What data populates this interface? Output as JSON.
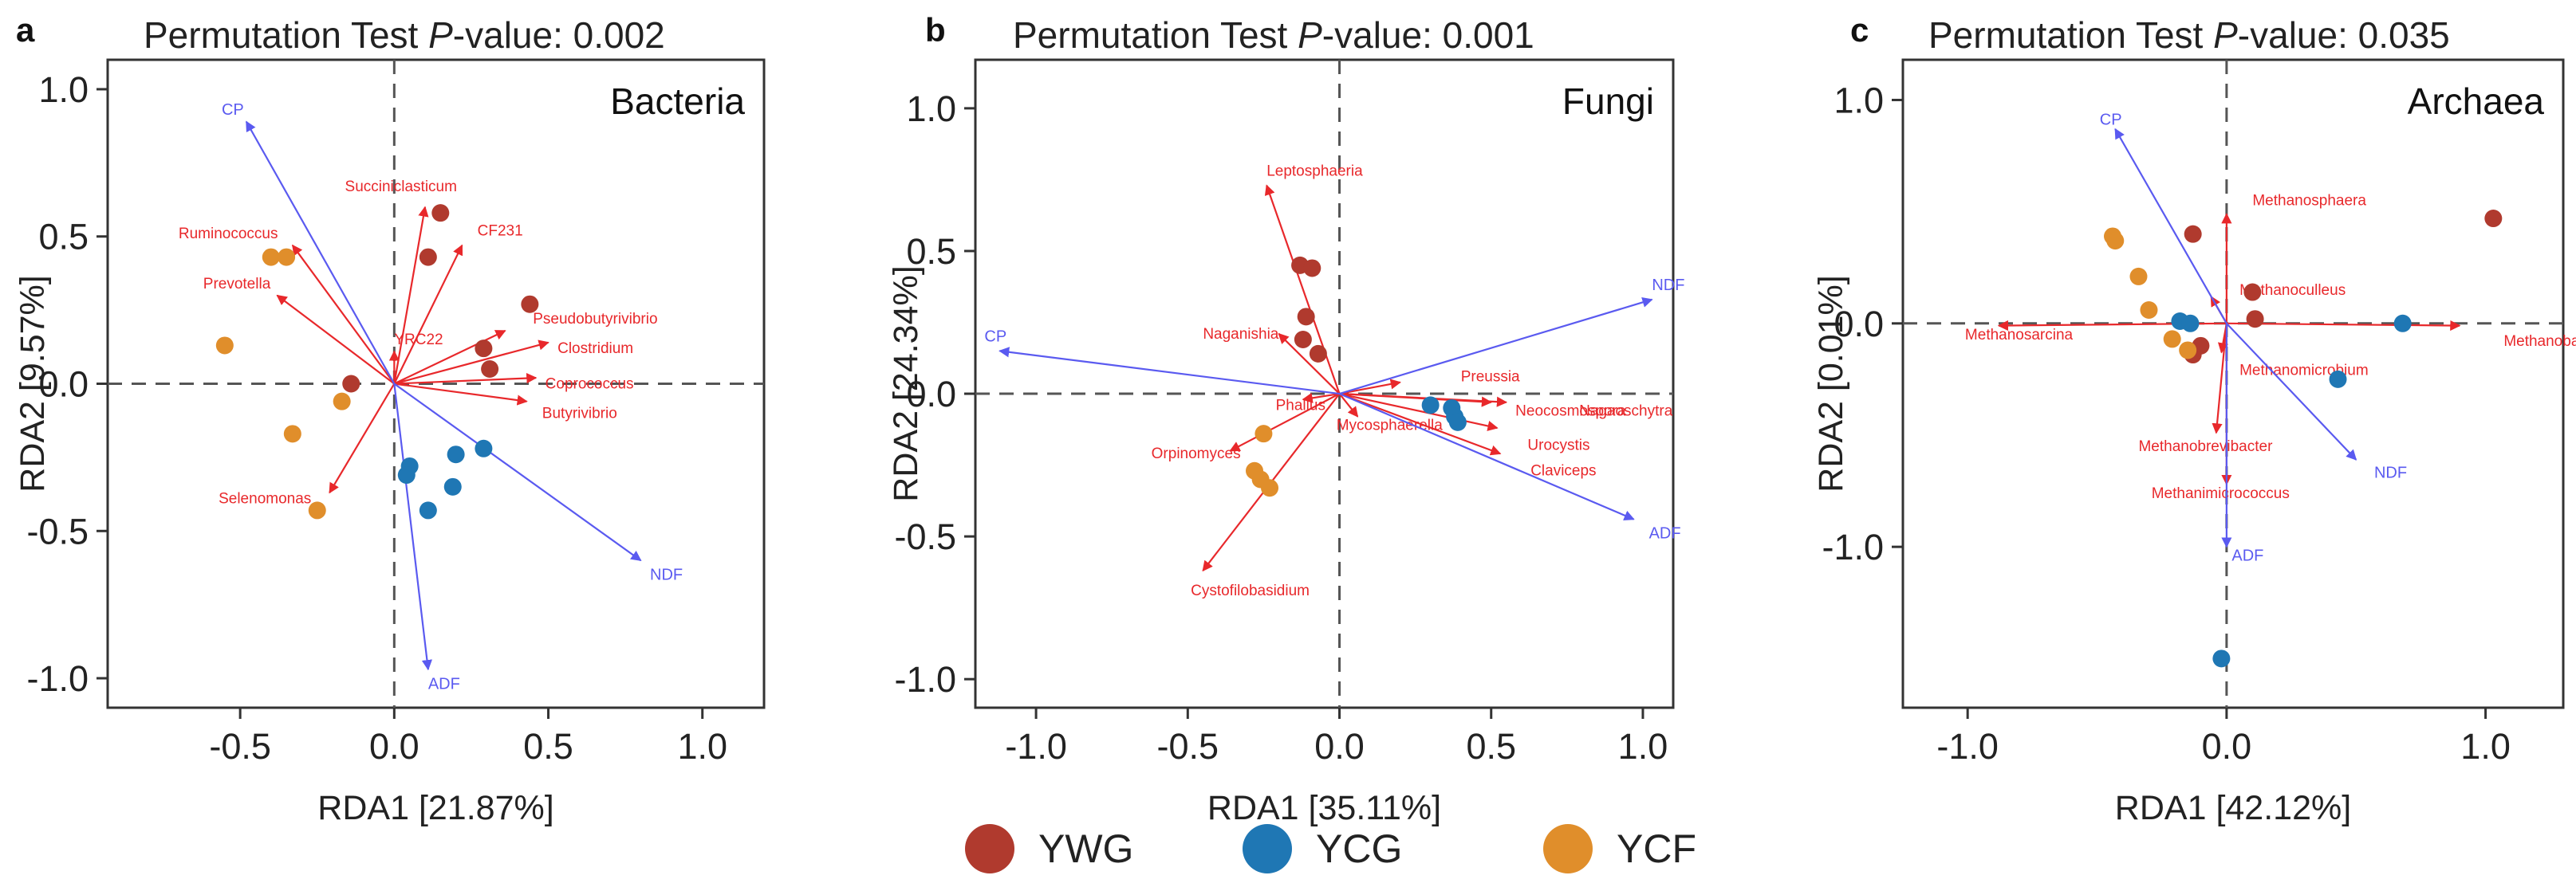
{
  "colors": {
    "YWG": "#b03a2e",
    "YCG": "#1f77b4",
    "YCF": "#e08e2b",
    "arrow_species": "#e8282b",
    "arrow_env": "#5a5af0"
  },
  "chart_data": [
    {
      "type": "scatter",
      "panel_letter": "a",
      "title_prefix": "Permutation Test ",
      "title_p": "P",
      "title_suffix": "-value: 0.002",
      "group_label": "Bacteria",
      "xlabel": "RDA1 [21.87%]",
      "ylabel": "RDA2 [9.57%]",
      "xlim": [
        -0.93,
        1.2
      ],
      "ylim": [
        -1.1,
        1.1
      ],
      "xticks": [
        -0.5,
        0.0,
        0.5,
        1.0
      ],
      "xtick_labels": [
        "-0.5",
        "0.0",
        "0.5",
        "1.0"
      ],
      "yticks": [
        -1.0,
        -0.5,
        0.0,
        0.5,
        1.0
      ],
      "ytick_labels": [
        "-1.0",
        "-0.5",
        "0.0",
        "0.5",
        "1.0"
      ],
      "points": [
        {
          "group": "YWG",
          "x": 0.15,
          "y": 0.58
        },
        {
          "group": "YWG",
          "x": 0.11,
          "y": 0.43
        },
        {
          "group": "YWG",
          "x": 0.44,
          "y": 0.27
        },
        {
          "group": "YWG",
          "x": 0.29,
          "y": 0.12
        },
        {
          "group": "YWG",
          "x": 0.31,
          "y": 0.05
        },
        {
          "group": "YWG",
          "x": -0.14,
          "y": 0.0
        },
        {
          "group": "YCG",
          "x": 0.05,
          "y": -0.28
        },
        {
          "group": "YCG",
          "x": 0.04,
          "y": -0.31
        },
        {
          "group": "YCG",
          "x": 0.2,
          "y": -0.24
        },
        {
          "group": "YCG",
          "x": 0.29,
          "y": -0.22
        },
        {
          "group": "YCG",
          "x": 0.19,
          "y": -0.35
        },
        {
          "group": "YCG",
          "x": 0.11,
          "y": -0.43
        },
        {
          "group": "YCF",
          "x": -0.4,
          "y": 0.43
        },
        {
          "group": "YCF",
          "x": -0.35,
          "y": 0.43
        },
        {
          "group": "YCF",
          "x": -0.55,
          "y": 0.13
        },
        {
          "group": "YCF",
          "x": -0.17,
          "y": -0.06
        },
        {
          "group": "YCF",
          "x": -0.33,
          "y": -0.17
        },
        {
          "group": "YCF",
          "x": -0.25,
          "y": -0.43
        }
      ],
      "species_arrows": [
        {
          "label": "Succiniclasticum",
          "x": 0.1,
          "y": 0.6,
          "dx": -0.26,
          "dy": 0.07
        },
        {
          "label": "CF231",
          "x": 0.22,
          "y": 0.47,
          "dx": 0.05,
          "dy": 0.05
        },
        {
          "label": "Ruminococcus",
          "x": -0.33,
          "y": 0.47,
          "dx": -0.37,
          "dy": 0.04
        },
        {
          "label": "Prevotella",
          "x": -0.38,
          "y": 0.3,
          "dx": -0.24,
          "dy": 0.04
        },
        {
          "label": "Pseudobutyrivibrio",
          "x": 0.36,
          "y": 0.18,
          "dx": 0.09,
          "dy": 0.04
        },
        {
          "label": "Clostridium",
          "x": 0.5,
          "y": 0.14,
          "dx": 0.03,
          "dy": -0.02
        },
        {
          "label": "YRC22",
          "x": 0.0,
          "y": 0.11,
          "dx": 0.0,
          "dy": 0.04
        },
        {
          "label": "Coprococcus",
          "x": 0.46,
          "y": 0.02,
          "dx": 0.03,
          "dy": -0.02
        },
        {
          "label": "Butyrivibrio",
          "x": 0.43,
          "y": -0.06,
          "dx": 0.05,
          "dy": -0.04
        },
        {
          "label": "Selenomonas",
          "x": -0.21,
          "y": -0.37,
          "dx": -0.36,
          "dy": -0.02
        }
      ],
      "env_arrows": [
        {
          "label": "CP",
          "x": -0.48,
          "y": 0.89,
          "dx": -0.08,
          "dy": 0.04
        },
        {
          "label": "NDF",
          "x": 0.8,
          "y": -0.6,
          "dx": 0.03,
          "dy": -0.05
        },
        {
          "label": "ADF",
          "x": 0.11,
          "y": -0.97,
          "dx": 0.0,
          "dy": -0.05
        }
      ]
    },
    {
      "type": "scatter",
      "panel_letter": "b",
      "title_prefix": "Permutation Test ",
      "title_p": "P",
      "title_suffix": "-value: 0.001",
      "group_label": "Fungi",
      "xlabel": "RDA1 [35.11%]",
      "ylabel": "RDA2 [24.34%]",
      "xlim": [
        -1.2,
        1.1
      ],
      "ylim": [
        -1.1,
        1.17
      ],
      "xticks": [
        -1.0,
        -0.5,
        0.0,
        0.5,
        1.0
      ],
      "xtick_labels": [
        "-1.0",
        "-0.5",
        "0.0",
        "0.5",
        "1.0"
      ],
      "yticks": [
        -1.0,
        -0.5,
        0.0,
        0.5,
        1.0
      ],
      "ytick_labels": [
        "-1.0",
        "-0.5",
        "0.0",
        "0.5",
        "1.0"
      ],
      "points": [
        {
          "group": "YWG",
          "x": -0.13,
          "y": 0.45
        },
        {
          "group": "YWG",
          "x": -0.09,
          "y": 0.44
        },
        {
          "group": "YWG",
          "x": -0.11,
          "y": 0.27
        },
        {
          "group": "YWG",
          "x": -0.12,
          "y": 0.19
        },
        {
          "group": "YWG",
          "x": -0.07,
          "y": 0.14
        },
        {
          "group": "YCG",
          "x": 0.3,
          "y": -0.04
        },
        {
          "group": "YCG",
          "x": 0.37,
          "y": -0.05
        },
        {
          "group": "YCG",
          "x": 0.38,
          "y": -0.08
        },
        {
          "group": "YCG",
          "x": 0.39,
          "y": -0.1
        },
        {
          "group": "YCF",
          "x": -0.25,
          "y": -0.14
        },
        {
          "group": "YCF",
          "x": -0.28,
          "y": -0.27
        },
        {
          "group": "YCF",
          "x": -0.26,
          "y": -0.3
        },
        {
          "group": "YCF",
          "x": -0.23,
          "y": -0.33
        }
      ],
      "species_arrows": [
        {
          "label": "Leptosphaeria",
          "x": -0.24,
          "y": 0.73,
          "dx": 0.0,
          "dy": 0.05
        },
        {
          "label": "Naganishia",
          "x": -0.2,
          "y": 0.21,
          "dx": -0.25,
          "dy": 0.0
        },
        {
          "label": "Preussia",
          "x": 0.2,
          "y": 0.04,
          "dx": 0.2,
          "dy": 0.02
        },
        {
          "label": "Phallus",
          "x": -0.12,
          "y": -0.02,
          "dx": -0.09,
          "dy": -0.02
        },
        {
          "label": "Neocosmospora",
          "x": 0.5,
          "y": -0.03,
          "dx": 0.08,
          "dy": -0.03
        },
        {
          "label": "Nagaoschytra",
          "x": 0.55,
          "y": -0.03,
          "dx": 0.24,
          "dy": -0.03
        },
        {
          "label": "Mycosphaerella",
          "x": 0.06,
          "y": -0.08,
          "dx": -0.07,
          "dy": -0.03
        },
        {
          "label": "Urocystis",
          "x": 0.52,
          "y": -0.12,
          "dx": 0.1,
          "dy": -0.06
        },
        {
          "label": "Orpinomyces",
          "x": -0.36,
          "y": -0.2,
          "dx": -0.26,
          "dy": -0.01
        },
        {
          "label": "Claviceps",
          "x": 0.53,
          "y": -0.21,
          "dx": 0.1,
          "dy": -0.06
        },
        {
          "label": "Cystofilobasidium",
          "x": -0.45,
          "y": -0.62,
          "dx": -0.04,
          "dy": -0.07
        }
      ],
      "env_arrows": [
        {
          "label": "NDF",
          "x": 1.03,
          "y": 0.33,
          "dx": 0.0,
          "dy": 0.05
        },
        {
          "label": "CP",
          "x": -1.12,
          "y": 0.15,
          "dx": -0.05,
          "dy": 0.05
        },
        {
          "label": "ADF",
          "x": 0.97,
          "y": -0.44,
          "dx": 0.05,
          "dy": -0.05
        }
      ]
    },
    {
      "type": "scatter",
      "panel_letter": "c",
      "title_prefix": "Permutation Test ",
      "title_p": "P",
      "title_suffix": "-value: 0.035",
      "group_label": "Archaea",
      "xlabel": "RDA1 [42.12%]",
      "ylabel": "RDA2 [0.01%]",
      "xlim": [
        -1.25,
        1.3
      ],
      "ylim": [
        -1.72,
        1.18
      ],
      "xticks": [
        -1.0,
        0.0,
        1.0
      ],
      "xtick_labels": [
        "-1.0",
        "0.0",
        "1.0"
      ],
      "yticks": [
        -1.0,
        0.0,
        1.0
      ],
      "ytick_labels": [
        "-1.0",
        "0.0",
        "1.0"
      ],
      "points": [
        {
          "group": "YWG",
          "x": 1.03,
          "y": 0.47
        },
        {
          "group": "YWG",
          "x": -0.13,
          "y": 0.4
        },
        {
          "group": "YWG",
          "x": 0.1,
          "y": 0.14
        },
        {
          "group": "YWG",
          "x": 0.11,
          "y": 0.02
        },
        {
          "group": "YWG",
          "x": -0.1,
          "y": -0.1
        },
        {
          "group": "YWG",
          "x": -0.13,
          "y": -0.14
        },
        {
          "group": "YCG",
          "x": -0.18,
          "y": 0.01
        },
        {
          "group": "YCG",
          "x": -0.14,
          "y": 0.0
        },
        {
          "group": "YCG",
          "x": 0.68,
          "y": 0.0
        },
        {
          "group": "YCG",
          "x": 0.43,
          "y": -0.25
        },
        {
          "group": "YCG",
          "x": -0.02,
          "y": -1.5
        },
        {
          "group": "YCF",
          "x": -0.44,
          "y": 0.39
        },
        {
          "group": "YCF",
          "x": -0.43,
          "y": 0.37
        },
        {
          "group": "YCF",
          "x": -0.34,
          "y": 0.21
        },
        {
          "group": "YCF",
          "x": -0.3,
          "y": 0.06
        },
        {
          "group": "YCF",
          "x": -0.21,
          "y": -0.07
        },
        {
          "group": "YCF",
          "x": -0.15,
          "y": -0.12
        }
      ],
      "species_arrows": [
        {
          "label": "Methanosphaera",
          "x": 0.0,
          "y": 0.49,
          "dx": 0.1,
          "dy": 0.06
        },
        {
          "label": "Methanoculleus",
          "x": -0.06,
          "y": 0.12,
          "dx": 0.11,
          "dy": 0.03
        },
        {
          "label": "Methanosarcina",
          "x": -0.88,
          "y": -0.01,
          "dx": -0.13,
          "dy": -0.04
        },
        {
          "label": "Methanobacterium",
          "x": 0.9,
          "y": -0.01,
          "dx": 0.17,
          "dy": -0.07
        },
        {
          "label": "Methanomicrobium",
          "x": -0.02,
          "y": -0.13,
          "dx": 0.07,
          "dy": -0.08
        },
        {
          "label": "Methanobrevibacter",
          "x": -0.04,
          "y": -0.49,
          "dx": -0.3,
          "dy": -0.06
        },
        {
          "label": "Methanimicrococcus",
          "x": 0.0,
          "y": -0.72,
          "dx": -0.29,
          "dy": -0.04
        }
      ],
      "env_arrows": [
        {
          "label": "CP",
          "x": -0.43,
          "y": 0.87,
          "dx": -0.06,
          "dy": 0.04
        },
        {
          "label": "NDF",
          "x": 0.5,
          "y": -0.61,
          "dx": 0.07,
          "dy": -0.06
        },
        {
          "label": "ADF",
          "x": 0.0,
          "y": -1.0,
          "dx": 0.02,
          "dy": -0.04
        }
      ]
    }
  ],
  "legend": {
    "items": [
      {
        "group": "YWG",
        "label": "YWG"
      },
      {
        "group": "YCG",
        "label": "YCG"
      },
      {
        "group": "YCF",
        "label": "YCF"
      }
    ]
  }
}
